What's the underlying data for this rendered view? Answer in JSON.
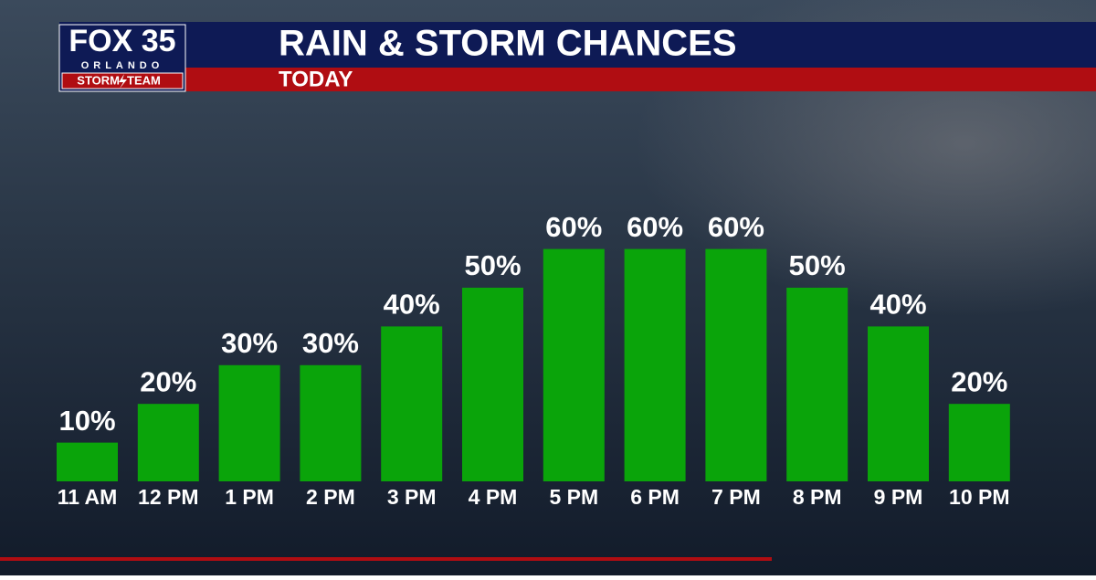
{
  "chart_data": {
    "type": "bar",
    "title": "RAIN & STORM CHANCES",
    "subtitle": "TODAY",
    "categories": [
      "11 AM",
      "12 PM",
      "1 PM",
      "2 PM",
      "3 PM",
      "4 PM",
      "5 PM",
      "6 PM",
      "7 PM",
      "8 PM",
      "9 PM",
      "10 PM"
    ],
    "values": [
      10,
      20,
      30,
      30,
      40,
      50,
      60,
      60,
      60,
      50,
      40,
      20
    ],
    "value_labels": [
      "10%",
      "20%",
      "30%",
      "30%",
      "40%",
      "50%",
      "60%",
      "60%",
      "60%",
      "50%",
      "40%",
      "20%"
    ],
    "color": "#0aa40a"
  },
  "logo": {
    "brand": "FOX 35",
    "city": "ORLANDO",
    "team_left": "STORM",
    "team_right": "TEAM"
  }
}
